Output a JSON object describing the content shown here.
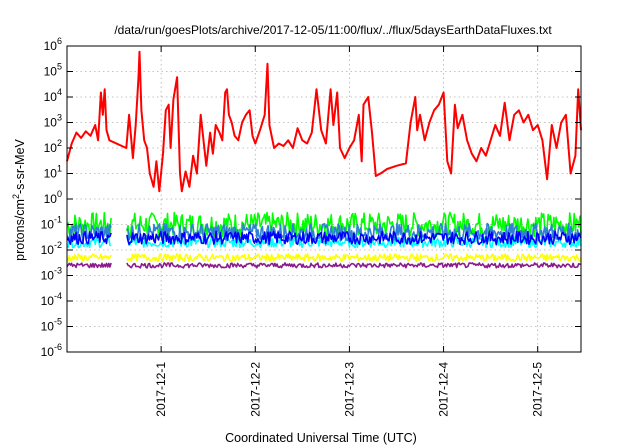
{
  "chart_data": {
    "type": "line",
    "title": "/data/run/goesPlots/archive/2017-12-05/11:00/flux/../flux/5daysEarthDataFluxes.txt",
    "xlabel": "Coordinated Universal Time (UTC)",
    "ylabel": "protons/cm^2-s-sr-MeV",
    "y_scale": "log",
    "ylim": [
      1e-06,
      1000000.0
    ],
    "xlim": [
      0.0,
      5.46
    ],
    "x_unit": "days since 2017-11-30 00:00 UTC",
    "grid": true,
    "y_ticks": [
      {
        "value": 1000000.0,
        "base": "10",
        "exp": "6"
      },
      {
        "value": 100000.0,
        "base": "10",
        "exp": "5"
      },
      {
        "value": 10000.0,
        "base": "10",
        "exp": "4"
      },
      {
        "value": 1000.0,
        "base": "10",
        "exp": "3"
      },
      {
        "value": 100.0,
        "base": "10",
        "exp": "2"
      },
      {
        "value": 10.0,
        "base": "10",
        "exp": "1"
      },
      {
        "value": 1.0,
        "base": "10",
        "exp": "0"
      },
      {
        "value": 0.1,
        "base": "10",
        "exp": "-1"
      },
      {
        "value": 0.01,
        "base": "10",
        "exp": "-2"
      },
      {
        "value": 0.001,
        "base": "10",
        "exp": "-3"
      },
      {
        "value": 0.0001,
        "base": "10",
        "exp": "-4"
      },
      {
        "value": 1e-05,
        "base": "10",
        "exp": "-5"
      },
      {
        "value": 1e-06,
        "base": "10",
        "exp": "-6"
      }
    ],
    "x_ticks": [
      {
        "value": 1,
        "label": "2017-12-1"
      },
      {
        "value": 2,
        "label": "2017-12-2"
      },
      {
        "value": 3,
        "label": "2017-12-3"
      },
      {
        "value": 4,
        "label": "2017-12-4"
      },
      {
        "value": 5,
        "label": "2017-12-5"
      }
    ],
    "data_gap": [
      0.47,
      0.63
    ],
    "series": [
      {
        "color": "#ff0000",
        "points": [
          [
            0.0,
            30
          ],
          [
            0.05,
            150
          ],
          [
            0.1,
            400
          ],
          [
            0.15,
            250
          ],
          [
            0.2,
            450
          ],
          [
            0.25,
            300
          ],
          [
            0.3,
            800
          ],
          [
            0.33,
            200
          ],
          [
            0.36,
            15000
          ],
          [
            0.38,
            2000
          ],
          [
            0.4,
            20000
          ],
          [
            0.42,
            500
          ],
          [
            0.45,
            200
          ],
          [
            0.63,
            100
          ],
          [
            0.66,
            2000
          ],
          [
            0.7,
            40
          ],
          [
            0.73,
            800
          ],
          [
            0.76,
            60000
          ],
          [
            0.77,
            600000
          ],
          [
            0.79,
            3000
          ],
          [
            0.82,
            200
          ],
          [
            0.85,
            100
          ],
          [
            0.88,
            10
          ],
          [
            0.92,
            3
          ],
          [
            0.95,
            30
          ],
          [
            0.98,
            2
          ],
          [
            1.02,
            60
          ],
          [
            1.05,
            3000
          ],
          [
            1.08,
            5000
          ],
          [
            1.1,
            100
          ],
          [
            1.13,
            8000
          ],
          [
            1.17,
            60000
          ],
          [
            1.2,
            10
          ],
          [
            1.22,
            2
          ],
          [
            1.26,
            12
          ],
          [
            1.3,
            3
          ],
          [
            1.34,
            50
          ],
          [
            1.38,
            10
          ],
          [
            1.42,
            2000
          ],
          [
            1.45,
            200
          ],
          [
            1.48,
            20
          ],
          [
            1.52,
            400
          ],
          [
            1.55,
            60
          ],
          [
            1.58,
            800
          ],
          [
            1.62,
            400
          ],
          [
            1.65,
            200
          ],
          [
            1.68,
            15000
          ],
          [
            1.7,
            20000
          ],
          [
            1.72,
            2000
          ],
          [
            1.75,
            1000
          ],
          [
            1.78,
            300
          ],
          [
            1.82,
            200
          ],
          [
            1.86,
            1000
          ],
          [
            1.9,
            2000
          ],
          [
            1.94,
            3000
          ],
          [
            1.97,
            300
          ],
          [
            2.0,
            150
          ],
          [
            2.05,
            500
          ],
          [
            2.1,
            2000
          ],
          [
            2.13,
            200000
          ],
          [
            2.15,
            800
          ],
          [
            2.2,
            100
          ],
          [
            2.25,
            150
          ],
          [
            2.3,
            120
          ],
          [
            2.35,
            200
          ],
          [
            2.4,
            100
          ],
          [
            2.45,
            600
          ],
          [
            2.5,
            200
          ],
          [
            2.55,
            150
          ],
          [
            2.6,
            400
          ],
          [
            2.65,
            20000
          ],
          [
            2.7,
            500
          ],
          [
            2.75,
            150
          ],
          [
            2.8,
            20000
          ],
          [
            2.83,
            800
          ],
          [
            2.87,
            15000
          ],
          [
            2.9,
            100
          ],
          [
            2.95,
            40
          ],
          [
            3.0,
            100
          ],
          [
            3.05,
            200
          ],
          [
            3.1,
            2000
          ],
          [
            3.13,
            30
          ],
          [
            3.15,
            5000
          ],
          [
            3.2,
            10000
          ],
          [
            3.24,
            400
          ],
          [
            3.28,
            8
          ],
          [
            3.33,
            10
          ],
          [
            3.4,
            15
          ],
          [
            3.5,
            20
          ],
          [
            3.6,
            25
          ],
          [
            3.65,
            1000
          ],
          [
            3.7,
            10000
          ],
          [
            3.72,
            500
          ],
          [
            3.75,
            2000
          ],
          [
            3.8,
            200
          ],
          [
            3.85,
            1000
          ],
          [
            3.9,
            3000
          ],
          [
            3.95,
            5000
          ],
          [
            4.0,
            15000
          ],
          [
            4.04,
            30
          ],
          [
            4.08,
            10
          ],
          [
            4.12,
            5000
          ],
          [
            4.15,
            600
          ],
          [
            4.2,
            2000
          ],
          [
            4.25,
            200
          ],
          [
            4.3,
            60
          ],
          [
            4.35,
            30
          ],
          [
            4.4,
            100
          ],
          [
            4.45,
            50
          ],
          [
            4.5,
            200
          ],
          [
            4.55,
            800
          ],
          [
            4.6,
            300
          ],
          [
            4.65,
            6000
          ],
          [
            4.7,
            200
          ],
          [
            4.75,
            2000
          ],
          [
            4.8,
            3000
          ],
          [
            4.85,
            1000
          ],
          [
            4.9,
            2000
          ],
          [
            4.95,
            500
          ],
          [
            5.0,
            800
          ],
          [
            5.05,
            200
          ],
          [
            5.1,
            6
          ],
          [
            5.15,
            800
          ],
          [
            5.2,
            100
          ],
          [
            5.25,
            1000
          ],
          [
            5.3,
            2000
          ],
          [
            5.35,
            10
          ],
          [
            5.4,
            50
          ],
          [
            5.43,
            20000
          ],
          [
            5.46,
            500
          ]
        ]
      },
      {
        "color": "#00ff00",
        "base": 0.1,
        "spread": 3.0
      },
      {
        "color": "#00ffff",
        "base": 0.02,
        "spread": 1.6
      },
      {
        "color": "#2f7fd8",
        "base": 0.05,
        "spread": 2.2
      },
      {
        "color": "#0000ff",
        "base": 0.03,
        "spread": 1.8
      },
      {
        "color": "#ffff00",
        "base": 0.005,
        "spread": 1.4
      },
      {
        "color": "#8b1a8b",
        "base": 0.0025,
        "spread": 1.25
      }
    ]
  }
}
